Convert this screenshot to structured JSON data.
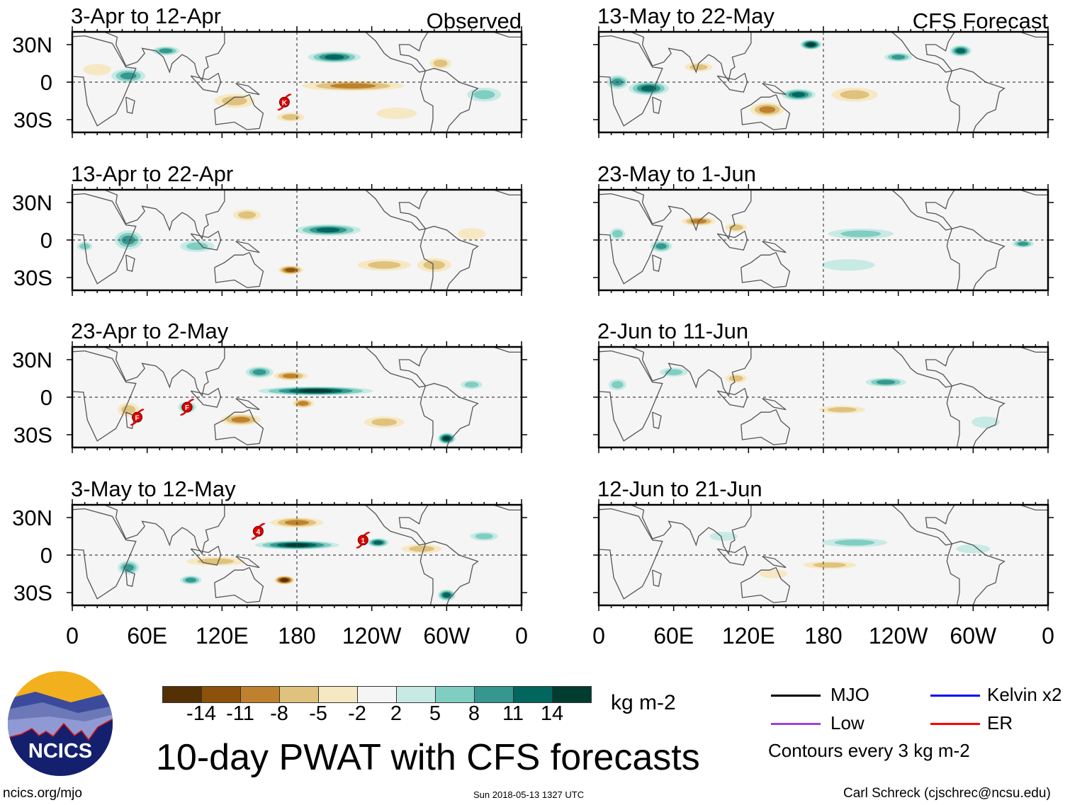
{
  "chart_data": {
    "type": "heatmap",
    "title": "10-day PWAT with CFS forecasts",
    "units": "kg m-2",
    "xlabel": "",
    "ylabel": "",
    "x_ticks": [
      "0",
      "60E",
      "120E",
      "180",
      "120W",
      "60W",
      "0"
    ],
    "y_ticks": [
      "30N",
      "0",
      "30S"
    ],
    "xlim": [
      0,
      360
    ],
    "ylim": [
      -40,
      40
    ],
    "colorbar": {
      "levels": [
        "-14",
        "-11",
        "-8",
        "-5",
        "-2",
        "2",
        "5",
        "8",
        "11",
        "14"
      ],
      "colors": [
        "#543005",
        "#8c510a",
        "#bf812d",
        "#dfc27d",
        "#f6e8c3",
        "#f5f5f5",
        "#c7eae5",
        "#80cdc1",
        "#35978f",
        "#01665e",
        "#003c30"
      ]
    },
    "column_labels": {
      "observed": "Observed",
      "forecast": "CFS Forecast"
    },
    "panels": [
      {
        "title": "3-Apr to 12-Apr",
        "column": "observed",
        "features": [
          [
            210,
            20,
            40,
            8,
            12
          ],
          [
            225,
            -3,
            80,
            7,
            -9
          ],
          [
            45,
            5,
            25,
            10,
            9
          ],
          [
            75,
            25,
            20,
            6,
            8
          ],
          [
            295,
            15,
            15,
            8,
            -6
          ],
          [
            130,
            -15,
            30,
            10,
            -6
          ],
          [
            175,
            -28,
            20,
            6,
            -5
          ],
          [
            330,
            -10,
            25,
            10,
            5
          ],
          [
            20,
            10,
            20,
            8,
            -4
          ],
          [
            260,
            -25,
            30,
            8,
            -4
          ]
        ],
        "storms": [
          {
            "label": "K",
            "lon": 170,
            "lat": -16
          }
        ]
      },
      {
        "title": "13-Apr to 22-Apr",
        "column": "observed",
        "features": [
          [
            205,
            8,
            50,
            8,
            11
          ],
          [
            175,
            -24,
            18,
            6,
            -12
          ],
          [
            45,
            0,
            20,
            14,
            9
          ],
          [
            290,
            -20,
            25,
            10,
            -5
          ],
          [
            100,
            -5,
            25,
            8,
            5
          ],
          [
            250,
            -20,
            40,
            8,
            -5
          ],
          [
            320,
            5,
            20,
            8,
            -4
          ],
          [
            140,
            20,
            20,
            8,
            -5
          ],
          [
            10,
            -5,
            10,
            6,
            7
          ]
        ],
        "storms": []
      },
      {
        "title": "23-Apr to 2-May",
        "column": "observed",
        "features": [
          [
            195,
            5,
            90,
            6,
            14
          ],
          [
            175,
            17,
            25,
            6,
            -8
          ],
          [
            185,
            -5,
            15,
            6,
            -9
          ],
          [
            300,
            -33,
            12,
            8,
            14
          ],
          [
            135,
            -18,
            30,
            8,
            -9
          ],
          [
            92,
            -8,
            12,
            8,
            9
          ],
          [
            45,
            -10,
            15,
            10,
            -6
          ],
          [
            150,
            20,
            20,
            8,
            9
          ],
          [
            250,
            -20,
            30,
            8,
            -5
          ],
          [
            320,
            10,
            15,
            6,
            5
          ]
        ],
        "storms": [
          {
            "label": "F",
            "lon": 52,
            "lat": -16
          },
          {
            "label": "F",
            "lon": 92,
            "lat": -8
          }
        ]
      },
      {
        "title": "3-May to 12-May",
        "column": "observed",
        "features": [
          [
            180,
            8,
            65,
            6,
            15
          ],
          [
            180,
            26,
            40,
            7,
            -9
          ],
          [
            170,
            -20,
            14,
            6,
            -15
          ],
          [
            245,
            10,
            15,
            6,
            12
          ],
          [
            115,
            -5,
            45,
            6,
            -6
          ],
          [
            300,
            -32,
            12,
            8,
            12
          ],
          [
            45,
            -10,
            15,
            10,
            8
          ],
          [
            95,
            -20,
            15,
            6,
            9
          ],
          [
            280,
            5,
            30,
            6,
            -6
          ],
          [
            330,
            15,
            20,
            6,
            5
          ]
        ],
        "storms": [
          {
            "label": "4",
            "lon": 149,
            "lat": 19
          },
          {
            "label": "1",
            "lon": 233,
            "lat": 12
          }
        ]
      }
    ],
    "forecast_panels": [
      {
        "title": "13-May to 22-May",
        "column": "forecast",
        "features": [
          [
            170,
            30,
            15,
            7,
            15
          ],
          [
            40,
            -5,
            30,
            10,
            12
          ],
          [
            135,
            -22,
            25,
            10,
            -9
          ],
          [
            160,
            -10,
            25,
            8,
            11
          ],
          [
            240,
            20,
            20,
            6,
            9
          ],
          [
            80,
            12,
            20,
            6,
            -5
          ],
          [
            290,
            25,
            15,
            8,
            12
          ],
          [
            205,
            -10,
            35,
            10,
            -5
          ],
          [
            15,
            0,
            15,
            10,
            8
          ]
        ],
        "storms": []
      },
      {
        "title": "23-May to 1-Jun",
        "column": "forecast",
        "features": [
          [
            80,
            15,
            25,
            6,
            -9
          ],
          [
            50,
            -5,
            15,
            8,
            9
          ],
          [
            210,
            5,
            50,
            7,
            5
          ],
          [
            15,
            5,
            10,
            8,
            7
          ],
          [
            110,
            10,
            15,
            6,
            -6
          ],
          [
            340,
            -3,
            15,
            5,
            8
          ],
          [
            200,
            -20,
            40,
            8,
            4
          ]
        ],
        "storms": []
      },
      {
        "title": "2-Jun to 11-Jun",
        "column": "forecast",
        "features": [
          [
            230,
            12,
            30,
            6,
            9
          ],
          [
            195,
            -10,
            35,
            5,
            -6
          ],
          [
            60,
            20,
            20,
            6,
            5
          ],
          [
            15,
            10,
            12,
            8,
            6
          ],
          [
            110,
            15,
            15,
            6,
            -5
          ],
          [
            310,
            -20,
            20,
            8,
            4
          ]
        ],
        "storms": []
      },
      {
        "title": "12-Jun to 21-Jun",
        "column": "forecast",
        "features": [
          [
            185,
            -8,
            40,
            5,
            -5
          ],
          [
            205,
            10,
            50,
            6,
            5
          ],
          [
            100,
            15,
            20,
            6,
            4
          ],
          [
            300,
            5,
            25,
            6,
            4
          ],
          [
            140,
            -15,
            20,
            6,
            -4
          ]
        ],
        "storms": []
      }
    ]
  },
  "legend": {
    "items": [
      {
        "label": "MJO",
        "color": "#000000"
      },
      {
        "label": "Kelvin x2",
        "color": "#0000ff"
      },
      {
        "label": "Low",
        "color": "#a040e0"
      },
      {
        "label": "ER",
        "color": "#ff0000"
      }
    ],
    "contours_note": "Contours every 3 kg m-2"
  },
  "footer": {
    "url": "ncics.org/mjo",
    "timestamp": "Sun 2018-05-13 1327 UTC",
    "credit": "Carl Schreck (cjschrec@ncsu.edu)",
    "logo_text": "NCICS"
  }
}
